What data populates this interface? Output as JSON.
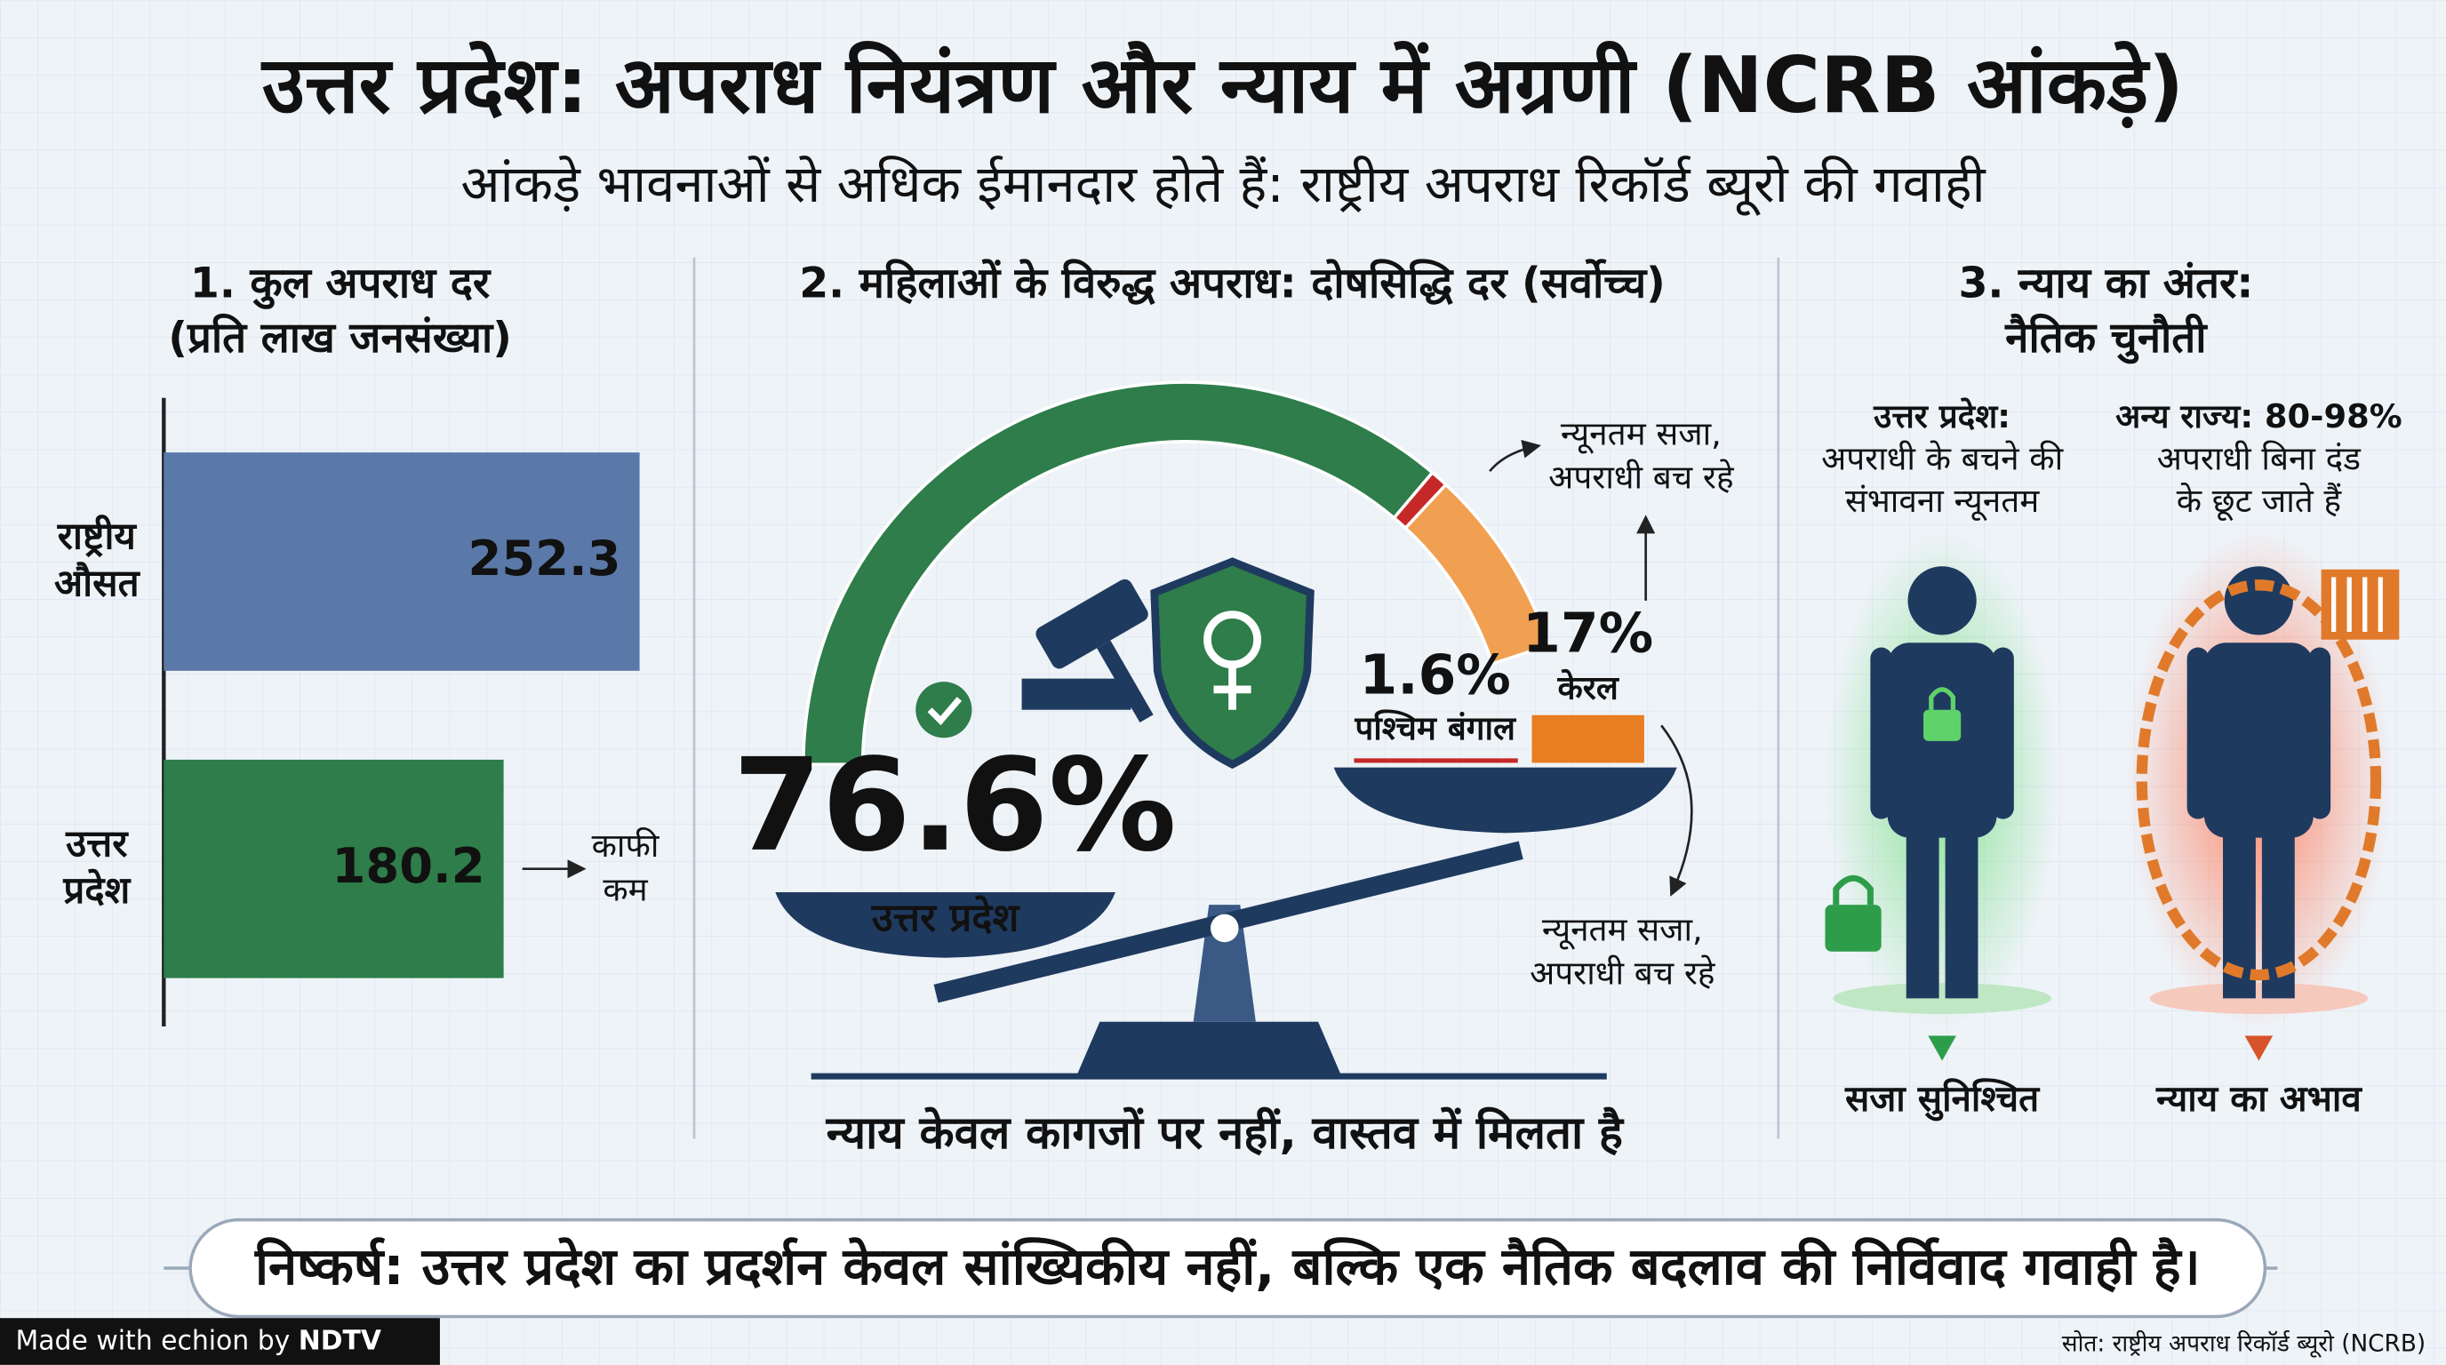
{
  "header": {
    "title": "उत्तर प्रदेश: अपराध नियंत्रण और न्याय में अग्रणी (NCRB आंकड़े)",
    "subtitle": "आंकड़े भावनाओं से अधिक ईमानदार होते हैं: राष्ट्रीय अपराध रिकॉर्ड ब्यूरो की गवाही"
  },
  "chart_data": [
    {
      "type": "bar",
      "title": "1. कुल अपराध दर",
      "subtitle": "(प्रति लाख जनसंख्या)",
      "categories": [
        "राष्ट्रीय औसत",
        "उत्तर प्रदेश"
      ],
      "values": [
        252.3,
        180.2
      ],
      "colors": [
        "#5b79a8",
        "#2e7d4a"
      ],
      "annotation": "काफी कम"
    },
    {
      "type": "gauge",
      "title": "2. महिलाओं के विरुद्ध अपराध: दोषसिद्धि दर (सर्वोच्च)",
      "categories": [
        "उत्तर प्रदेश",
        "पश्चिम बंगाल",
        "केरल"
      ],
      "values": [
        76.6,
        1.6,
        17
      ],
      "value_labels": [
        "76.6%",
        "1.6%",
        "17%"
      ],
      "colors": [
        "#2e7d4a",
        "#c62828",
        "#f0a050"
      ],
      "annotations": [
        [
          "न्यूनतम सजा,",
          "अपराधी बच रहे"
        ],
        [
          "न्यूनतम सजा,",
          "अपराधी बच रहे"
        ]
      ],
      "caption": "न्याय केवल कागजों पर नहीं, वास्तव में मिलता है"
    }
  ],
  "panel3": {
    "title": [
      "3. न्याय का अंतर:",
      "नैतिक चुनौती"
    ],
    "left": {
      "caption": [
        "उत्तर प्रदेश:",
        "अपराधी के बचने की",
        "संभावना न्यूनतम"
      ],
      "label": "सजा सुनिश्चित"
    },
    "right": {
      "caption": [
        "अन्य राज्य: 80-98%",
        "अपराधी बिना दंड",
        "के छूट जाते हैं"
      ],
      "label": "न्याय का अभाव"
    }
  },
  "conclusion": "निष्कर्ष: उत्तर प्रदेश का प्रदर्शन केवल सांख्यिकीय नहीं, बल्कि एक नैतिक बदलाव की निर्विवाद गवाही है।",
  "source": "सोत: राष्ट्रीय अपराध रिकॉर्ड ब्यूरो (NCRB)",
  "footer": {
    "made_with": "Made with",
    "brand": "echion",
    "by": "by",
    "partner": "NDTV"
  }
}
